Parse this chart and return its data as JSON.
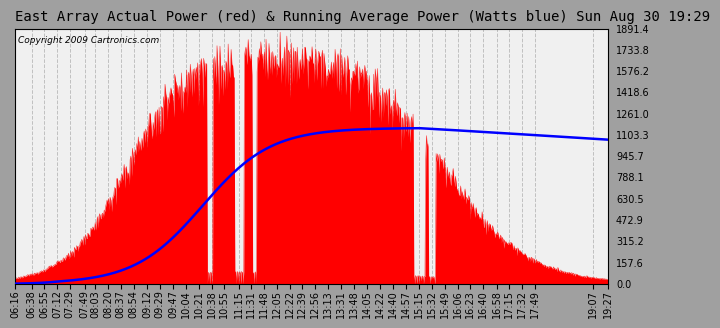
{
  "title": "East Array Actual Power (red) & Running Average Power (Watts blue) Sun Aug 30 19:29",
  "copyright": "Copyright 2009 Cartronics.com",
  "fig_bg_color": "#a0a0a0",
  "plot_bg_color": "#f0f0f0",
  "grid_color": "#c0c0c0",
  "y_ticks": [
    0.0,
    157.6,
    315.2,
    472.9,
    630.5,
    788.1,
    945.7,
    1103.3,
    1261.0,
    1418.6,
    1576.2,
    1733.8,
    1891.4
  ],
  "ylim": [
    0,
    1891.4
  ],
  "x_labels": [
    "06:16",
    "06:38",
    "06:55",
    "07:12",
    "07:29",
    "07:49",
    "08:03",
    "08:20",
    "08:37",
    "08:54",
    "09:12",
    "09:29",
    "09:47",
    "10:04",
    "10:21",
    "10:38",
    "10:55",
    "11:15",
    "11:31",
    "11:48",
    "12:05",
    "12:22",
    "12:39",
    "12:56",
    "13:13",
    "13:31",
    "13:48",
    "14:05",
    "14:22",
    "14:40",
    "14:57",
    "15:15",
    "15:32",
    "15:49",
    "16:06",
    "16:23",
    "16:40",
    "16:58",
    "17:15",
    "17:32",
    "17:49",
    "19:07",
    "19:27"
  ],
  "red_color": "#ff0000",
  "blue_color": "#0000ff",
  "title_color": "#000000",
  "title_fontsize": 10,
  "tick_fontsize": 7,
  "copyright_fontsize": 6.5
}
